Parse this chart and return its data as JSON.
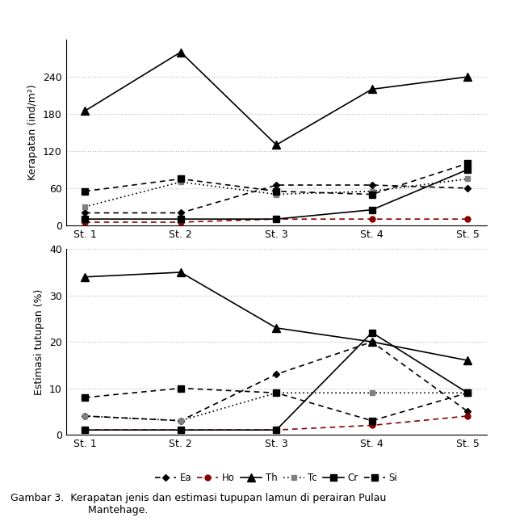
{
  "stations": [
    "St. 1",
    "St. 2",
    "St. 3",
    "St. 4",
    "St. 5"
  ],
  "kerapatan": {
    "Ea": [
      20,
      20,
      65,
      65,
      60
    ],
    "Ho": [
      5,
      5,
      10,
      10,
      10
    ],
    "Th": [
      185,
      280,
      130,
      220,
      240
    ],
    "Tc": [
      30,
      70,
      50,
      55,
      75
    ],
    "Cr": [
      10,
      10,
      10,
      25,
      90
    ],
    "Si": [
      55,
      75,
      55,
      50,
      100
    ]
  },
  "tutupan": {
    "Ea": [
      4,
      3,
      13,
      20,
      5
    ],
    "Ho": [
      1,
      1,
      1,
      2,
      4
    ],
    "Th": [
      34,
      35,
      23,
      20,
      16
    ],
    "Tc": [
      4,
      3,
      9,
      9,
      9
    ],
    "Cr": [
      1,
      1,
      1,
      22,
      9
    ],
    "Si": [
      8,
      10,
      9,
      3,
      9
    ]
  },
  "ylim_kerapatan": [
    0,
    300
  ],
  "yticks_kerapatan": [
    0,
    60,
    120,
    180,
    240
  ],
  "ylim_tutupan": [
    0,
    40
  ],
  "yticks_tutupan": [
    0,
    10,
    20,
    30,
    40
  ],
  "ylabel_kerapatan": "Kerapatan (ind/m²)",
  "ylabel_tutupan": "Estimasi tutupan (%)",
  "legend_labels": [
    "Ea",
    "Ho",
    "Th",
    "Tc",
    "Cr",
    "Si"
  ],
  "background_color": "white",
  "grid_color": "#bbbbbb",
  "axis_fontsize": 9,
  "tick_fontsize": 9,
  "legend_fontsize": 8.5
}
